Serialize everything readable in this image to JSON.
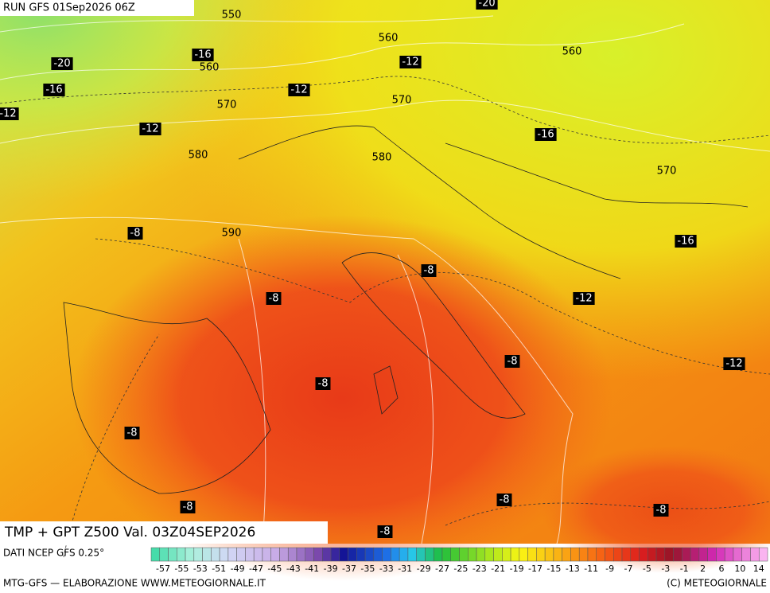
{
  "header": {
    "run": "RUN GFS 01Sep2026 06Z"
  },
  "map": {
    "temperature_labels": [
      -20,
      -20,
      -16,
      -12,
      -16,
      -12,
      -12,
      -12,
      -16,
      -8,
      -16,
      -8,
      -8,
      -12,
      -8,
      -12,
      -8,
      -8,
      -8,
      -8,
      -8,
      -8
    ],
    "height_labels": [
      550,
      560,
      560,
      560,
      570,
      570,
      580,
      580,
      570,
      590
    ]
  },
  "footer": {
    "title": "TMP + GPT Z500 Val. 03Z04SEP2026",
    "source": "DATI NCEP GFS 0.25°",
    "credit": "MTG-GFS — ELABORAZIONE WWW.METEOGIORNALE.IT",
    "copyright": "(C) METEOGIORNALE"
  },
  "colorbar": {
    "labels": [
      -57,
      -55,
      -53,
      -51,
      -49,
      -47,
      -45,
      -43,
      -41,
      -39,
      -37,
      -35,
      -33,
      -31,
      -29,
      -27,
      -25,
      -23,
      -21,
      -19,
      -17,
      -15,
      -13,
      -11,
      -9,
      -7,
      -5,
      -3,
      -1,
      2,
      6,
      10,
      14
    ]
  }
}
